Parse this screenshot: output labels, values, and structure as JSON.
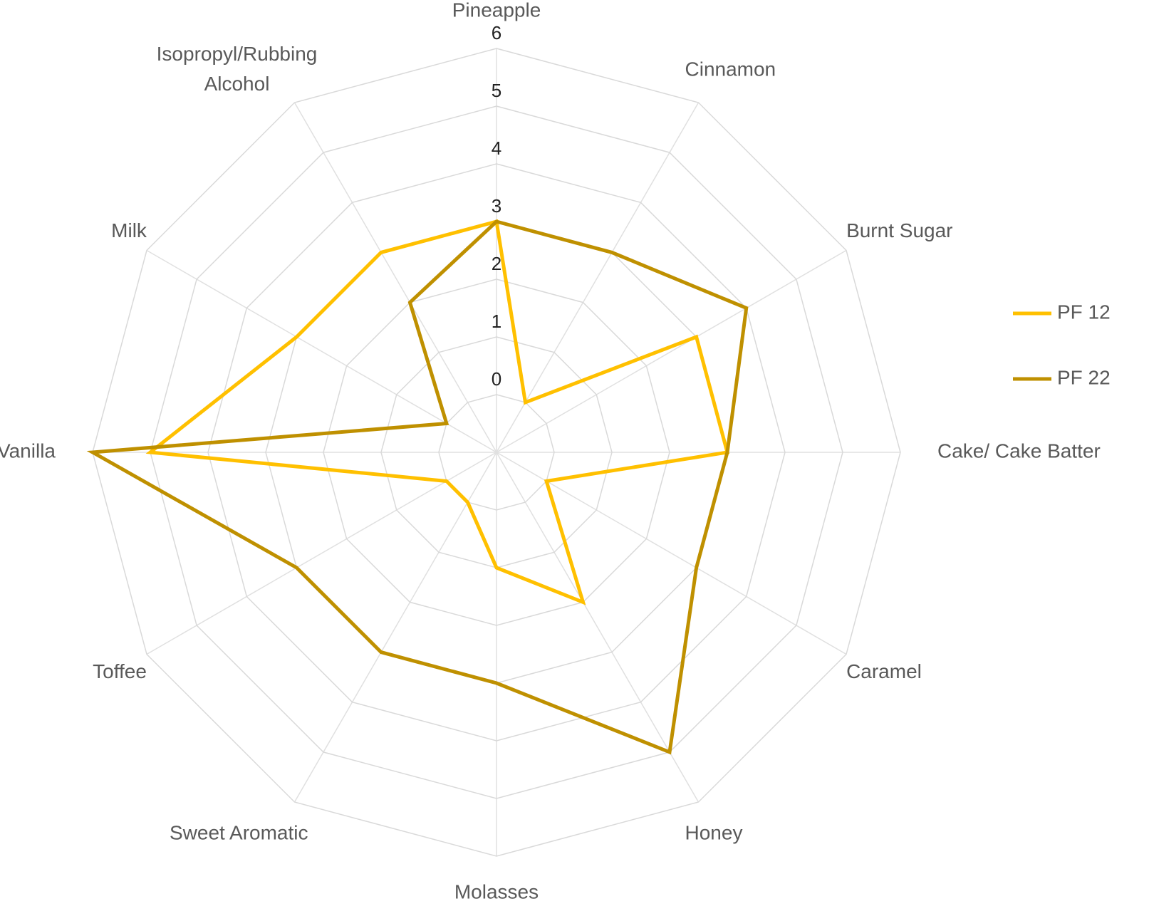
{
  "chart_data": {
    "type": "radar",
    "categories": [
      "Pineapple",
      "Cinnamon",
      "Burnt Sugar",
      "Cake/ Cake Batter",
      "Caramel",
      "Honey",
      "Molasses",
      "Sweet Aromatic",
      "Toffee",
      "Vanilla",
      "Milk",
      "Isopropyl/Rubbing Alcohol"
    ],
    "series": [
      {
        "name": "PF 12",
        "color": "#ffc000",
        "values": [
          3,
          0,
          3,
          3,
          0,
          2,
          1,
          0,
          0,
          5,
          3,
          3
        ]
      },
      {
        "name": "PF 22",
        "color": "#bf9000",
        "values": [
          3,
          3,
          4,
          3,
          3,
          5,
          3,
          3,
          3,
          6,
          0,
          2
        ]
      }
    ],
    "ylim": [
      -1,
      6
    ],
    "yticks": [
      0,
      1,
      2,
      3,
      4,
      5,
      6
    ],
    "grid": true,
    "legend": "right"
  }
}
